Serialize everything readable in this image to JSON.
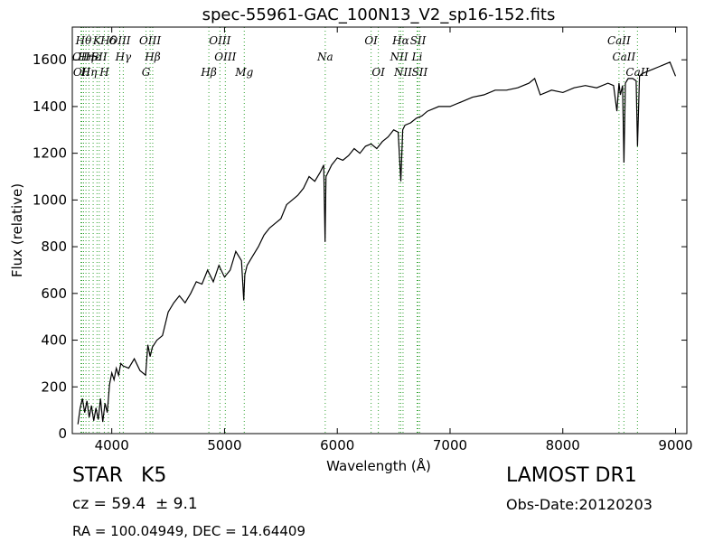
{
  "chart_data": {
    "type": "line",
    "title": "spec-55961-GAC_100N13_V2_sp16-152.fits",
    "xlabel": "Wavelength (Å)",
    "ylabel": "Flux (relative)",
    "xlim": [
      3650,
      9100
    ],
    "ylim": [
      0,
      1740
    ],
    "xticks": [
      4000,
      5000,
      6000,
      7000,
      8000,
      9000
    ],
    "yticks": [
      0,
      200,
      400,
      600,
      800,
      1000,
      1200,
      1400,
      1600
    ],
    "grid": false,
    "legend": "none",
    "line_color": "#000000",
    "marker_color": "#2ca02c",
    "series": [
      {
        "x": [
          3700,
          3720,
          3740,
          3760,
          3780,
          3800,
          3820,
          3840,
          3860,
          3880,
          3900,
          3920,
          3940,
          3960,
          3980,
          4000,
          4020,
          4040,
          4060,
          4080,
          4100,
          4150,
          4200,
          4250,
          4300,
          4320,
          4340,
          4360,
          4400,
          4450,
          4500,
          4550,
          4600,
          4650,
          4700,
          4750,
          4800,
          4850,
          4900,
          4950,
          5000,
          5050,
          5100,
          5150,
          5170,
          5180,
          5200,
          5250,
          5300,
          5350,
          5400,
          5450,
          5500,
          5550,
          5600,
          5650,
          5700,
          5750,
          5800,
          5850,
          5880,
          5892,
          5900,
          5950,
          6000,
          6050,
          6100,
          6150,
          6200,
          6250,
          6300,
          6350,
          6400,
          6450,
          6500,
          6540,
          6563,
          6580,
          6600,
          6650,
          6700,
          6750,
          6800,
          6900,
          7000,
          7100,
          7200,
          7300,
          7400,
          7500,
          7600,
          7700,
          7750,
          7800,
          7850,
          7900,
          8000,
          8100,
          8200,
          8300,
          8400,
          8450,
          8480,
          8498,
          8510,
          8530,
          8542,
          8555,
          8580,
          8620,
          8650,
          8662,
          8680,
          8700,
          8750,
          8800,
          8850,
          8900,
          8950,
          9000
        ],
        "values": [
          40,
          110,
          150,
          90,
          140,
          70,
          120,
          55,
          110,
          60,
          150,
          50,
          130,
          90,
          210,
          260,
          230,
          280,
          250,
          300,
          290,
          280,
          320,
          270,
          250,
          380,
          330,
          370,
          400,
          420,
          520,
          560,
          590,
          560,
          600,
          650,
          640,
          700,
          650,
          720,
          670,
          700,
          780,
          740,
          570,
          680,
          720,
          760,
          800,
          850,
          880,
          900,
          920,
          980,
          1000,
          1020,
          1050,
          1100,
          1080,
          1120,
          1150,
          820,
          1100,
          1150,
          1180,
          1170,
          1190,
          1220,
          1200,
          1230,
          1240,
          1220,
          1250,
          1270,
          1300,
          1290,
          1080,
          1300,
          1320,
          1330,
          1350,
          1360,
          1380,
          1400,
          1400,
          1420,
          1440,
          1450,
          1470,
          1470,
          1480,
          1500,
          1520,
          1450,
          1460,
          1470,
          1460,
          1480,
          1490,
          1480,
          1500,
          1490,
          1380,
          1500,
          1450,
          1490,
          1160,
          1500,
          1520,
          1520,
          1510,
          1230,
          1530,
          1540,
          1550,
          1560,
          1570,
          1580,
          1590,
          1530
        ]
      }
    ],
    "line_markers": [
      {
        "wavelength": 3727,
        "label": "OII",
        "row": 2
      },
      {
        "wavelength": 3734,
        "label": "OII",
        "row": 3
      },
      {
        "wavelength": 3750,
        "label": "Hθ",
        "row": 1
      },
      {
        "wavelength": 3771,
        "label": "Hη",
        "row": 2
      },
      {
        "wavelength": 3798,
        "label": "Hη",
        "row": 3
      },
      {
        "wavelength": 3835,
        "label": "Hε",
        "row": 2
      },
      {
        "wavelength": 3869,
        "label": "K",
        "row": 1
      },
      {
        "wavelength": 3889,
        "label": "SII",
        "row": 2
      },
      {
        "wavelength": 3934,
        "label": "H",
        "row": 3
      },
      {
        "wavelength": 3970,
        "label": "Hδ",
        "row": 1
      },
      {
        "wavelength": 4071,
        "label": "OIII",
        "row": 1
      },
      {
        "wavelength": 4102,
        "label": "Hγ",
        "row": 2
      },
      {
        "wavelength": 4304,
        "label": "G",
        "row": 3
      },
      {
        "wavelength": 4340,
        "label": "OIII",
        "row": 1
      },
      {
        "wavelength": 4363,
        "label": "Hβ",
        "row": 2
      },
      {
        "wavelength": 4861,
        "label": "Hβ",
        "row": 3
      },
      {
        "wavelength": 4959,
        "label": "OIII",
        "row": 1
      },
      {
        "wavelength": 5007,
        "label": "OIII",
        "row": 2
      },
      {
        "wavelength": 5175,
        "label": "Mg",
        "row": 3
      },
      {
        "wavelength": 5893,
        "label": "Na",
        "row": 2
      },
      {
        "wavelength": 6300,
        "label": "OI",
        "row": 1
      },
      {
        "wavelength": 6364,
        "label": "OI",
        "row": 3
      },
      {
        "wavelength": 6548,
        "label": "NII",
        "row": 2
      },
      {
        "wavelength": 6563,
        "label": "Hα",
        "row": 1
      },
      {
        "wavelength": 6583,
        "label": "NII",
        "row": 3
      },
      {
        "wavelength": 6708,
        "label": "Li",
        "row": 2
      },
      {
        "wavelength": 6716,
        "label": "SII",
        "row": 1
      },
      {
        "wavelength": 6731,
        "label": "SII",
        "row": 3
      },
      {
        "wavelength": 8498,
        "label": "CaII",
        "row": 1
      },
      {
        "wavelength": 8542,
        "label": "CaII",
        "row": 2
      },
      {
        "wavelength": 8662,
        "label": "CaII",
        "row": 3
      }
    ]
  },
  "info": {
    "class": "STAR",
    "subclass": "K5",
    "cz": "cz = 59.4  ± 9.1",
    "coords": "RA = 100.04949, DEC = 14.64409",
    "survey": "LAMOST DR1",
    "obs_date": "Obs-Date:20120203"
  }
}
